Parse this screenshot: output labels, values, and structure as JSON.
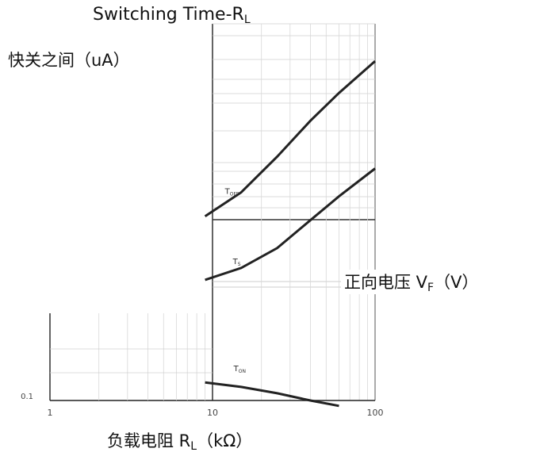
{
  "labels": {
    "title_main": "Switching Time-R",
    "title_sub": "L",
    "ylabel": "快关之间（uA）",
    "xlabel_main": "负载电阻 R",
    "xlabel_sub": "L",
    "xlabel_unit": "（kΩ）",
    "vf_main": "正向电压 V",
    "vf_sub": "F",
    "vf_unit": "（V）"
  },
  "chart_data": {
    "type": "line",
    "title": "Switching Time-RL",
    "xlabel": "负载电阻 RL（kΩ）",
    "ylabel": "快关之间（uA）",
    "x_scale": "log",
    "xlim": [
      1,
      100
    ],
    "x_ticks": [
      "1",
      "10",
      "100"
    ],
    "y_ticks": [
      "0.1"
    ],
    "grid": true,
    "series": [
      {
        "name": "TOFF",
        "x": [
          9,
          15,
          25,
          40,
          60,
          100
        ],
        "y": [
          0.52,
          0.58,
          0.67,
          0.76,
          0.83,
          0.91
        ]
      },
      {
        "name": "TS",
        "x": [
          9,
          15,
          25,
          40,
          60,
          100
        ],
        "y": [
          0.36,
          0.39,
          0.44,
          0.51,
          0.57,
          0.64
        ]
      },
      {
        "name": "TON",
        "x": [
          9,
          15,
          25,
          40,
          60
        ],
        "y": [
          0.12,
          0.115,
          0.108,
          0.1,
          0.094
        ]
      }
    ]
  }
}
